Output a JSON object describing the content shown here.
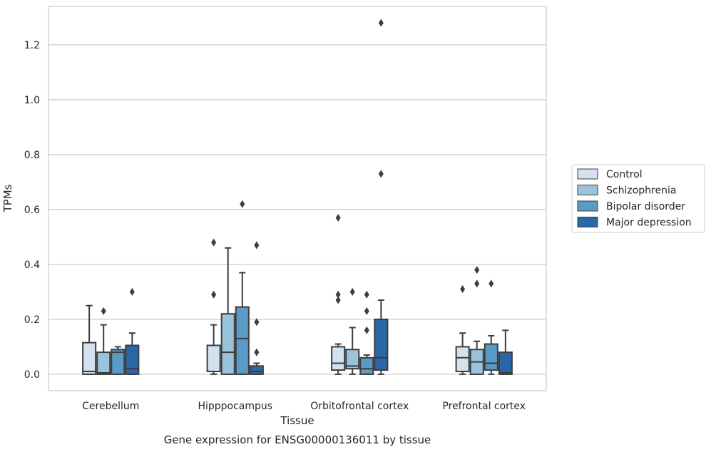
{
  "chart_data": {
    "type": "box",
    "caption": "Gene expression for ENSG00000136011 by tissue",
    "xlabel": "Tissue",
    "ylabel": "TPMs",
    "ylim": [
      -0.06,
      1.34
    ],
    "yticks": [
      0.0,
      0.2,
      0.4,
      0.6,
      0.8,
      1.0,
      1.2
    ],
    "ytick_labels": [
      "0.0",
      "0.2",
      "0.4",
      "0.6",
      "0.8",
      "1.0",
      "1.2"
    ],
    "grid": "horizontal",
    "legend_position": "right",
    "categories": [
      "Cerebellum",
      "Hipppocampus",
      "Orbitofrontal cortex",
      "Prefrontal cortex"
    ],
    "series": [
      {
        "name": "Control",
        "color": "#d3e1f0",
        "boxes": [
          {
            "whislo": 0.0,
            "q1": 0.0,
            "med": 0.01,
            "q3": 0.115,
            "whishi": 0.25,
            "fliers": []
          },
          {
            "whislo": 0.0,
            "q1": 0.01,
            "med": 0.01,
            "q3": 0.105,
            "whishi": 0.18,
            "fliers": [
              0.29,
              0.48
            ]
          },
          {
            "whislo": 0.0,
            "q1": 0.015,
            "med": 0.04,
            "q3": 0.1,
            "whishi": 0.11,
            "fliers": [
              0.27,
              0.29,
              0.57
            ]
          },
          {
            "whislo": 0.0,
            "q1": 0.01,
            "med": 0.06,
            "q3": 0.1,
            "whishi": 0.15,
            "fliers": [
              0.31
            ]
          }
        ]
      },
      {
        "name": "Schizophrenia",
        "color": "#9ac3dc",
        "boxes": [
          {
            "whislo": 0.0,
            "q1": 0.0,
            "med": 0.005,
            "q3": 0.08,
            "whishi": 0.18,
            "fliers": [
              0.23
            ]
          },
          {
            "whislo": 0.0,
            "q1": 0.0,
            "med": 0.08,
            "q3": 0.22,
            "whishi": 0.46,
            "fliers": []
          },
          {
            "whislo": 0.0,
            "q1": 0.02,
            "med": 0.03,
            "q3": 0.09,
            "whishi": 0.17,
            "fliers": [
              0.3
            ]
          },
          {
            "whislo": 0.0,
            "q1": 0.0,
            "med": 0.045,
            "q3": 0.09,
            "whishi": 0.12,
            "fliers": [
              0.33,
              0.38
            ]
          }
        ]
      },
      {
        "name": "Bipolar disorder",
        "color": "#5a9ac6",
        "boxes": [
          {
            "whislo": 0.0,
            "q1": 0.0,
            "med": 0.08,
            "q3": 0.09,
            "whishi": 0.1,
            "fliers": []
          },
          {
            "whislo": 0.0,
            "q1": 0.0,
            "med": 0.13,
            "q3": 0.245,
            "whishi": 0.37,
            "fliers": [
              0.62
            ]
          },
          {
            "whislo": 0.0,
            "q1": 0.0,
            "med": 0.02,
            "q3": 0.06,
            "whishi": 0.07,
            "fliers": [
              0.16,
              0.23,
              0.29
            ]
          },
          {
            "whislo": 0.0,
            "q1": 0.015,
            "med": 0.04,
            "q3": 0.11,
            "whishi": 0.14,
            "fliers": [
              0.33
            ]
          }
        ]
      },
      {
        "name": "Major depression",
        "color": "#2b67a6",
        "boxes": [
          {
            "whislo": 0.0,
            "q1": 0.0,
            "med": 0.02,
            "q3": 0.105,
            "whishi": 0.15,
            "fliers": [
              0.3
            ]
          },
          {
            "whislo": 0.0,
            "q1": 0.0,
            "med": 0.01,
            "q3": 0.03,
            "whishi": 0.04,
            "fliers": [
              0.08,
              0.19,
              0.47
            ]
          },
          {
            "whislo": 0.0,
            "q1": 0.015,
            "med": 0.06,
            "q3": 0.2,
            "whishi": 0.27,
            "fliers": [
              0.73,
              1.28
            ]
          },
          {
            "whislo": 0.0,
            "q1": 0.0,
            "med": 0.005,
            "q3": 0.08,
            "whishi": 0.16,
            "fliers": []
          }
        ]
      }
    ]
  }
}
